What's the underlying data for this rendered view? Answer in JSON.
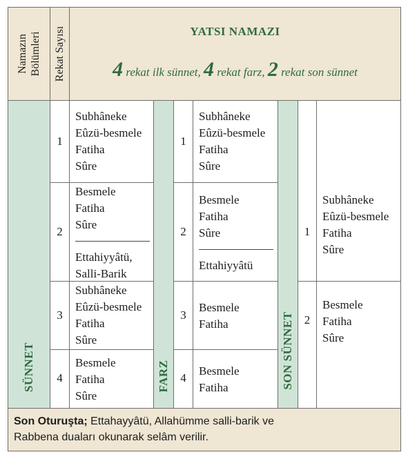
{
  "header": {
    "col1_label_line1": "Namazın",
    "col1_label_line2": "Bölümleri",
    "col2_label": "Rekat Sayısı",
    "title": "YATSI NAMAZI",
    "subtitle": {
      "n1": "4",
      "t1": "rekat ilk sünnet,",
      "n2": "4",
      "t2": "rekat farz,",
      "n3": "2",
      "t3": "rekat son sünnet"
    }
  },
  "sections": {
    "sunnet": "SÜNNET",
    "farz": "FARZ",
    "son_sunnet": "SON SÜNNET"
  },
  "sunnet_rows": [
    {
      "num": "1",
      "lines": [
        "Subhâneke",
        "Eûzü-besmele",
        "Fatiha",
        "Sûre"
      ]
    },
    {
      "num": "2",
      "lines": [
        "Besmele",
        "Fatiha",
        "Sûre"
      ],
      "after": [
        "Ettahiyyâtü,",
        "Salli-Barik"
      ]
    },
    {
      "num": "3",
      "lines": [
        "Subhâneke",
        "Eûzü-besmele",
        "Fatiha",
        "Sûre"
      ]
    },
    {
      "num": "4",
      "lines": [
        "Besmele",
        "Fatiha",
        "Sûre"
      ]
    }
  ],
  "farz_rows": [
    {
      "num": "1",
      "lines": [
        "Subhâneke",
        "Eûzü-besmele",
        "Fatiha",
        "Sûre"
      ]
    },
    {
      "num": "2",
      "lines": [
        "Besmele",
        "Fatiha",
        "Sûre"
      ],
      "after": [
        "Ettahiyyâtü"
      ]
    },
    {
      "num": "3",
      "lines": [
        "Besmele",
        "Fatiha"
      ]
    },
    {
      "num": "4",
      "lines": [
        "Besmele",
        "Fatiha"
      ]
    }
  ],
  "son_sunnet_rows": [
    {
      "num": "1",
      "lines": [
        "Subhâneke",
        "Eûzü-besmele",
        "Fatiha",
        "Sûre"
      ]
    },
    {
      "num": "2",
      "lines": [
        "Besmele",
        "Fatiha",
        "Sûre"
      ]
    }
  ],
  "footer": {
    "bold": "Son Oturuşta;",
    "text1": " Ettahayyâtü, Allahümme salli-barik ve",
    "text2": "Rabbena duaları okunarak selâm verilir."
  }
}
